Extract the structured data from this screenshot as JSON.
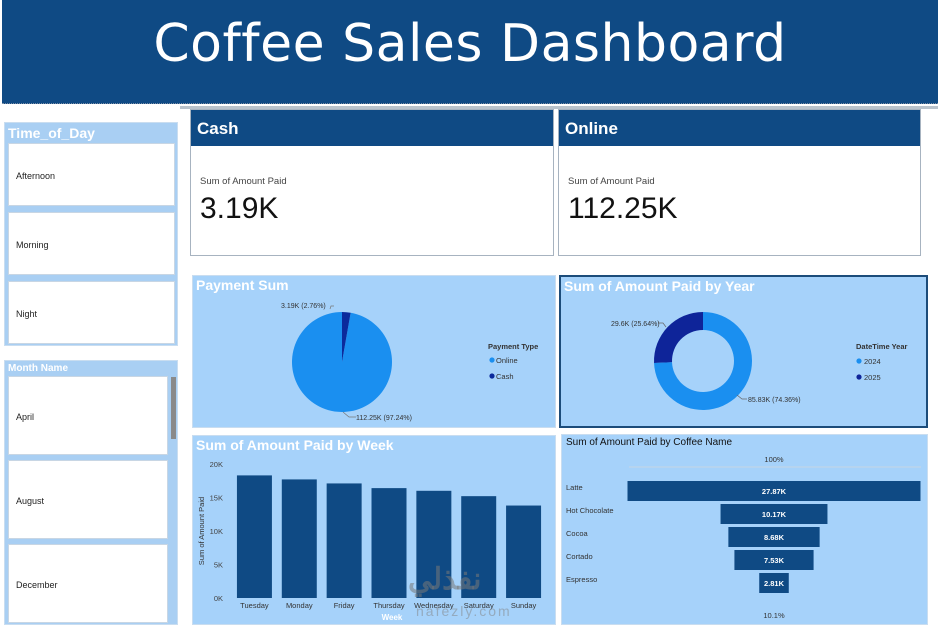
{
  "header": {
    "title": "Coffee Sales Dashboard"
  },
  "slicers": {
    "time_of_day": {
      "title": "Time_of_Day",
      "items": [
        "Afternoon",
        "Morning",
        "Night"
      ]
    },
    "month": {
      "title": "Month Name",
      "items": [
        "April",
        "August",
        "December"
      ]
    }
  },
  "cards": {
    "cash": {
      "title": "Cash",
      "label": "Sum of Amount Paid",
      "value": "3.19K"
    },
    "online": {
      "title": "Online",
      "label": "Sum of Amount Paid",
      "value": "112.25K"
    }
  },
  "colors": {
    "header": "#0f4a84",
    "panel": "#a6d2fa",
    "online": "#1a8ff0",
    "cash": "#0b2a9c",
    "y2024": "#1a8ff0",
    "y2025": "#0e2499"
  },
  "watermark": {
    "text": "نفذلي",
    "sub": "nafezly.com"
  },
  "chart_data": [
    {
      "type": "pie",
      "title": "Payment Sum",
      "legend_title": "Payment Type",
      "legend_position": "right",
      "slices": [
        {
          "label": "Online",
          "value": 112.25,
          "percent": 97.24,
          "data_label": "112.25K (97.24%)"
        },
        {
          "label": "Cash",
          "value": 3.19,
          "percent": 2.76,
          "data_label": "3.19K (2.76%)"
        }
      ]
    },
    {
      "type": "pie",
      "subtype": "donut",
      "title": "Sum of Amount Paid by Year",
      "legend_title": "DateTime Year",
      "legend_position": "right",
      "slices": [
        {
          "label": "2024",
          "value": 85.83,
          "percent": 74.36,
          "data_label": "85.83K (74.36%)"
        },
        {
          "label": "2025",
          "value": 29.6,
          "percent": 25.64,
          "data_label": "29.6K (25.64%)"
        }
      ]
    },
    {
      "type": "bar",
      "title": "Sum of Amount Paid by Week",
      "xlabel": "Week",
      "ylabel": "Sum of Amount Paid",
      "yticks": [
        "0K",
        "5K",
        "10K",
        "15K",
        "20K"
      ],
      "ylim": [
        0,
        20000
      ],
      "categories": [
        "Tuesday",
        "Monday",
        "Friday",
        "Thursday",
        "Wednesday",
        "Saturday",
        "Sunday"
      ],
      "values": [
        18300,
        17700,
        17100,
        16400,
        16000,
        15200,
        13800
      ],
      "grid": false
    },
    {
      "type": "bar",
      "subtype": "funnel",
      "title": "Sum of Amount Paid by Coffee Name",
      "top_label": "100%",
      "bottom_label": "10.1%",
      "categories": [
        "Latte",
        "Hot Chocolate",
        "Cocoa",
        "Cortado",
        "Espresso"
      ],
      "values": [
        27.87,
        10.17,
        8.68,
        7.53,
        2.81
      ],
      "data_labels": [
        "27.87K",
        "10.17K",
        "8.68K",
        "7.53K",
        "2.81K"
      ]
    }
  ]
}
